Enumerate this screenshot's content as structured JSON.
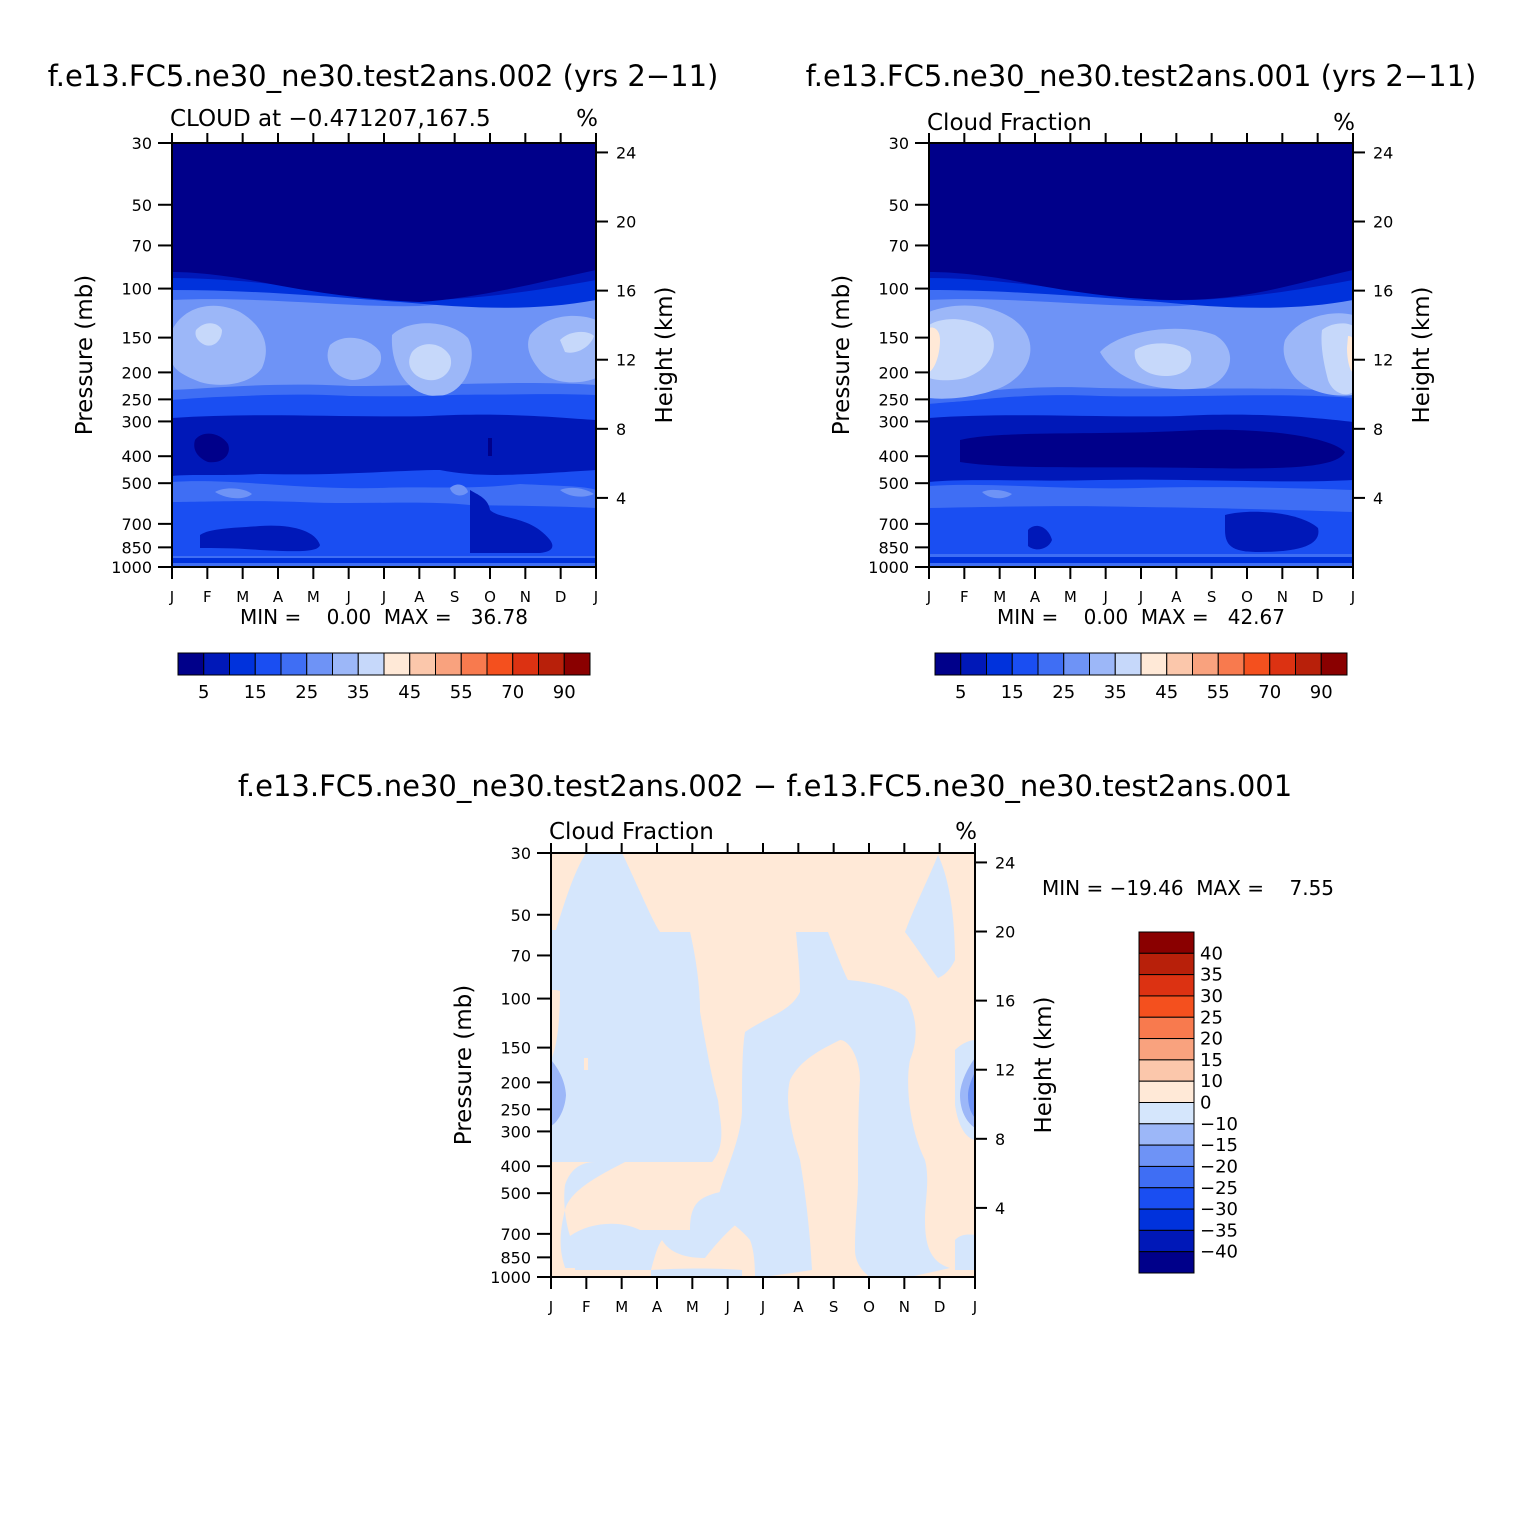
{
  "months": [
    "J",
    "F",
    "M",
    "A",
    "M",
    "J",
    "J",
    "A",
    "S",
    "O",
    "N",
    "D",
    "J"
  ],
  "pressure_ticks": [
    30,
    50,
    70,
    100,
    150,
    200,
    250,
    300,
    400,
    500,
    700,
    850,
    1000
  ],
  "height_ticks": [
    24,
    20,
    16,
    12,
    8,
    4
  ],
  "main_colorbar": {
    "labels": [
      "5",
      "15",
      "25",
      "35",
      "45",
      "55",
      "70",
      "90"
    ],
    "colors": [
      "#00008a",
      "#0018b8",
      "#0032dc",
      "#1a4ef2",
      "#3f6ef4",
      "#6e93f6",
      "#9cb7f8",
      "#c6d8fa",
      "#ffe9d7",
      "#fbc7ab",
      "#f9a27e",
      "#f87a4e",
      "#f4501e",
      "#dc3212",
      "#b8200a",
      "#8a0000"
    ]
  },
  "diff_colorbar": {
    "labels": [
      "40",
      "35",
      "30",
      "25",
      "20",
      "15",
      "10",
      "0",
      "−10",
      "−15",
      "−20",
      "−25",
      "−30",
      "−35",
      "−40"
    ],
    "colors": [
      "#8a0000",
      "#b8200a",
      "#dc3212",
      "#f4501e",
      "#f87a4e",
      "#f9a27e",
      "#fbc7ab",
      "#ffe9d7",
      "#d5e6fc",
      "#9cb7f8",
      "#6e93f6",
      "#3f6ef4",
      "#1a4ef2",
      "#0032dc",
      "#0018b8",
      "#00008a"
    ]
  },
  "panels": {
    "p1": {
      "main_title": "f.e13.FC5.ne30_ne30.test2ans.002 (yrs 2−11)",
      "left_subtitle": "CLOUD at −0.471207,167.5",
      "units": "%",
      "y_label": "Pressure (mb)",
      "y2_label": "Height (km)",
      "minmax": "MIN =    0.00  MAX =   36.78"
    },
    "p2": {
      "main_title": "f.e13.FC5.ne30_ne30.test2ans.001 (yrs 2−11)",
      "left_subtitle": "Cloud Fraction",
      "units": "%",
      "y_label": "Pressure (mb)",
      "y2_label": "Height (km)",
      "minmax": "MIN =    0.00  MAX =   42.67"
    },
    "p3": {
      "main_title": "f.e13.FC5.ne30_ne30.test2ans.002 − f.e13.FC5.ne30_ne30.test2ans.001",
      "left_subtitle": "Cloud Fraction",
      "units": "%",
      "y_label": "Pressure (mb)",
      "y2_label": "Height (km)",
      "minmax": "MIN = −19.46  MAX =    7.55"
    }
  },
  "chart_data": [
    {
      "type": "heatmap",
      "title": "f.e13.FC5.ne30_ne30.test2ans.002 (yrs 2−11)",
      "subtitle": "CLOUD at −0.471207,167.5",
      "units": "%",
      "xlabel": "",
      "ylabel": "Pressure (mb)",
      "y2label": "Height (km)",
      "x": [
        "J",
        "F",
        "M",
        "A",
        "M",
        "J",
        "J",
        "A",
        "S",
        "O",
        "N",
        "D",
        "J"
      ],
      "ylim": [
        1000,
        30
      ],
      "min": 0.0,
      "max": 36.78,
      "levels": [
        5,
        10,
        15,
        20,
        25,
        30,
        35,
        40,
        45,
        50,
        55,
        60,
        70,
        80,
        90
      ],
      "layers": [
        {
          "pressure_range": [
            30,
            75
          ],
          "value": 2
        },
        {
          "pressure_range": [
            75,
            110
          ],
          "value": 12
        },
        {
          "pressure_range": [
            110,
            220
          ],
          "value": 27,
          "maxima": [
            {
              "month": "F",
              "pressure": 125,
              "value": 36
            },
            {
              "month": "J",
              "pressure": 155,
              "value": 33
            },
            {
              "month": "A",
              "pressure": 160,
              "value": 34
            },
            {
              "month": "D",
              "pressure": 140,
              "value": 32
            }
          ]
        },
        {
          "pressure_range": [
            220,
            300
          ],
          "value": 15
        },
        {
          "pressure_range": [
            300,
            460
          ],
          "value": 8
        },
        {
          "pressure_range": [
            460,
            560
          ],
          "value": 22
        },
        {
          "pressure_range": [
            560,
            980
          ],
          "value": 12
        },
        {
          "pressure_range": [
            980,
            1000
          ],
          "value": 22
        }
      ]
    },
    {
      "type": "heatmap",
      "title": "f.e13.FC5.ne30_ne30.test2ans.001 (yrs 2−11)",
      "subtitle": "Cloud Fraction",
      "units": "%",
      "xlabel": "",
      "ylabel": "Pressure (mb)",
      "y2label": "Height (km)",
      "x": [
        "J",
        "F",
        "M",
        "A",
        "M",
        "J",
        "J",
        "A",
        "S",
        "O",
        "N",
        "D",
        "J"
      ],
      "ylim": [
        1000,
        30
      ],
      "min": 0.0,
      "max": 42.67,
      "levels": [
        5,
        10,
        15,
        20,
        25,
        30,
        35,
        40,
        45,
        50,
        55,
        60,
        70,
        80,
        90
      ],
      "layers": [
        {
          "pressure_range": [
            30,
            75
          ],
          "value": 2
        },
        {
          "pressure_range": [
            75,
            110
          ],
          "value": 12
        },
        {
          "pressure_range": [
            110,
            220
          ],
          "value": 28,
          "maxima": [
            {
              "month": "J",
              "pressure": 150,
              "value": 42
            },
            {
              "month": "F",
              "pressure": 130,
              "value": 37
            },
            {
              "month": "J",
              "pressure": 155,
              "value": 35
            },
            {
              "month": "D",
              "pressure": 150,
              "value": 40
            }
          ]
        },
        {
          "pressure_range": [
            220,
            300
          ],
          "value": 15
        },
        {
          "pressure_range": [
            300,
            460
          ],
          "value": 8
        },
        {
          "pressure_range": [
            460,
            560
          ],
          "value": 22
        },
        {
          "pressure_range": [
            560,
            980
          ],
          "value": 12
        },
        {
          "pressure_range": [
            980,
            1000
          ],
          "value": 22
        }
      ]
    },
    {
      "type": "heatmap",
      "title": "f.e13.FC5.ne30_ne30.test2ans.002 − f.e13.FC5.ne30_ne30.test2ans.001",
      "subtitle": "Cloud Fraction",
      "units": "%",
      "xlabel": "",
      "ylabel": "Pressure (mb)",
      "y2label": "Height (km)",
      "x": [
        "J",
        "F",
        "M",
        "A",
        "M",
        "J",
        "J",
        "A",
        "S",
        "O",
        "N",
        "D",
        "J"
      ],
      "ylim": [
        1000,
        30
      ],
      "min": -19.46,
      "max": 7.55,
      "levels": [
        -40,
        -35,
        -30,
        -25,
        -20,
        -15,
        -10,
        0,
        10,
        15,
        20,
        25,
        30,
        35,
        40
      ],
      "regions": [
        {
          "months": [
            "F",
            "M",
            "A",
            "M",
            "J"
          ],
          "value": -5
        },
        {
          "months": [
            "J",
            "A"
          ],
          "pressure_range": [
            30,
            120
          ],
          "value": 5
        },
        {
          "months": [
            "J",
            "A",
            "S",
            "O"
          ],
          "pressure_range": [
            120,
            1000
          ],
          "value": -5
        },
        {
          "months": [
            "A",
            "S",
            "O"
          ],
          "pressure_range": [
            140,
            900
          ],
          "value": 5
        },
        {
          "months": [
            "N",
            "D"
          ],
          "pressure_range": [
            30,
            120
          ],
          "value": -5
        },
        {
          "months": [
            "J"
          ],
          "pressure": 200,
          "value": -15
        }
      ]
    }
  ]
}
